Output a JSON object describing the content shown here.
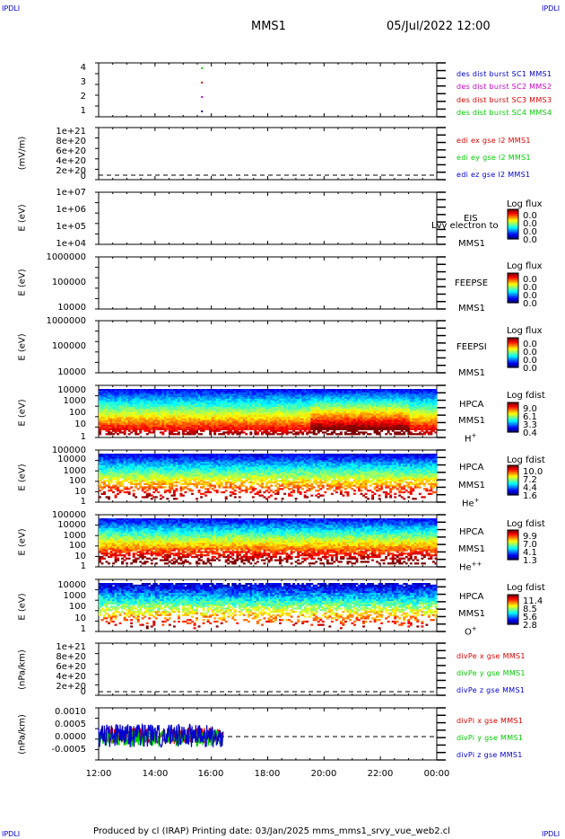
{
  "corners": {
    "tl": "IPDLI",
    "tr": "IPDLI",
    "bl": "IPDLI",
    "br": "IPDLI"
  },
  "header": {
    "spacecraft": "MMS1",
    "datetime": "05/Jul/2022 12:00"
  },
  "footer": {
    "text": "Produced by cl (IRAP)   Printing date: 03/Jan/2025   mms_mms1_srvy_vue_web2.cl"
  },
  "x_axis": {
    "ticks": [
      "12:00",
      "14:00",
      "16:00",
      "18:00",
      "20:00",
      "22:00",
      "00:00"
    ]
  },
  "colors": {
    "red": "#dd0000",
    "green": "#00cc00",
    "blue": "#0000cc",
    "magenta": "#cc00cc"
  },
  "chart_data": [
    {
      "type": "scatter",
      "panel": "des-dist-burst",
      "ylabel": "",
      "yticks": [
        "4",
        "3",
        "2",
        "1"
      ],
      "series": [
        {
          "name": "des dist burst SC1 MMS1",
          "color": "#0000cc",
          "x": [
            "15:40"
          ],
          "values": [
            1
          ]
        },
        {
          "name": "des dist burst SC2 MMS2",
          "color": "#cc00cc",
          "x": [
            "15:40"
          ],
          "values": [
            2
          ]
        },
        {
          "name": "des dist burst SC3 MMS3",
          "color": "#dd0000",
          "x": [
            "15:40"
          ],
          "values": [
            3
          ]
        },
        {
          "name": "des dist burst SC4 MMS4",
          "color": "#00cc00",
          "x": [
            "15:40"
          ],
          "values": [
            4
          ]
        }
      ]
    },
    {
      "type": "line",
      "panel": "edi",
      "ylabel": "(mV/m)",
      "yticks": [
        "1e+21",
        "8e+20",
        "6e+20",
        "4e+20",
        "2e+20",
        "0"
      ],
      "series": [
        {
          "name": "edi ex gse l2 MMS1",
          "color": "#dd0000"
        },
        {
          "name": "edi ey gse l2 MMS1",
          "color": "#00cc00"
        },
        {
          "name": "edi ez gse l2 MMS1",
          "color": "#0000cc"
        }
      ]
    },
    {
      "type": "heatmap",
      "panel": "eis",
      "ylabel": "E (eV)",
      "yticks": [
        "1e+07",
        "1e+06",
        "1e+05",
        "1e+04"
      ],
      "labels": [
        "EIS",
        "MMS1"
      ],
      "overlay_text": "Lvy electron to",
      "colorbar": {
        "title": "Log flux",
        "values": [
          "0.0",
          "0.0",
          "0.0",
          "0.0"
        ]
      }
    },
    {
      "type": "heatmap",
      "panel": "feepse",
      "ylabel": "E (eV)",
      "yticks": [
        "1000000",
        "100000",
        "10000"
      ],
      "labels": [
        "FEEPSE",
        "MMS1"
      ],
      "colorbar": {
        "title": "Log flux",
        "values": [
          "0.0",
          "0.0",
          "0.0",
          "0.0"
        ]
      }
    },
    {
      "type": "heatmap",
      "panel": "feepsi",
      "ylabel": "E (eV)",
      "yticks": [
        "1000000",
        "100000",
        "10000"
      ],
      "labels": [
        "FEEPSI",
        "MMS1"
      ],
      "colorbar": {
        "title": "Log flux",
        "values": [
          "0.0",
          "0.0",
          "0.0",
          "0.0"
        ]
      }
    },
    {
      "type": "heatmap",
      "panel": "hpca-h",
      "ylabel": "E (eV)",
      "yticks": [
        "10000",
        "1000",
        "100",
        "10",
        "1"
      ],
      "labels": [
        "HPCA",
        "MMS1"
      ],
      "species": "H",
      "species_sup": "+",
      "colorbar": {
        "title": "Log fdist",
        "values": [
          "9.0",
          "6.1",
          "3.3",
          "0.4"
        ]
      }
    },
    {
      "type": "heatmap",
      "panel": "hpca-he",
      "ylabel": "E (eV)",
      "yticks": [
        "100000",
        "10000",
        "1000",
        "100",
        "10",
        "1"
      ],
      "labels": [
        "HPCA",
        "MMS1"
      ],
      "species": "He",
      "species_sup": "+",
      "colorbar": {
        "title": "Log fdist",
        "values": [
          "10.0",
          "7.2",
          "4.4",
          "1.6"
        ]
      }
    },
    {
      "type": "heatmap",
      "panel": "hpca-hepp",
      "ylabel": "E (eV)",
      "yticks": [
        "100000",
        "10000",
        "1000",
        "100",
        "10",
        "1"
      ],
      "labels": [
        "HPCA",
        "MMS1"
      ],
      "species": "He",
      "species_sup": "++",
      "colorbar": {
        "title": "Log fdist",
        "values": [
          "9.9",
          "7.0",
          "4.1",
          "1.3"
        ]
      }
    },
    {
      "type": "heatmap",
      "panel": "hpca-o",
      "ylabel": "E (eV)",
      "yticks": [
        "10000",
        "1000",
        "100",
        "10",
        "1"
      ],
      "labels": [
        "HPCA",
        "MMS1"
      ],
      "species": "O",
      "species_sup": "+",
      "colorbar": {
        "title": "Log fdist",
        "values": [
          "11.4",
          "8.5",
          "5.6",
          "2.8"
        ]
      }
    },
    {
      "type": "line",
      "panel": "divpe",
      "ylabel": "(nPa/km)",
      "yticks": [
        "1e+21",
        "8e+20",
        "6e+20",
        "4e+20",
        "2e+20",
        "0"
      ],
      "series": [
        {
          "name": "divPe x gse MMS1",
          "color": "#dd0000"
        },
        {
          "name": "divPe y gse MMS1",
          "color": "#00cc00"
        },
        {
          "name": "divPe z gse MMS1",
          "color": "#0000cc"
        }
      ]
    },
    {
      "type": "line",
      "panel": "divpi",
      "ylabel": "(nPa/km)",
      "yticks": [
        "0.0010",
        "0.0005",
        "0.0000",
        "-0.0005"
      ],
      "series": [
        {
          "name": "divPi x gse MMS1",
          "color": "#dd0000"
        },
        {
          "name": "divPi y gse MMS1",
          "color": "#00cc00"
        },
        {
          "name": "divPi z gse MMS1",
          "color": "#0000cc"
        }
      ]
    }
  ]
}
